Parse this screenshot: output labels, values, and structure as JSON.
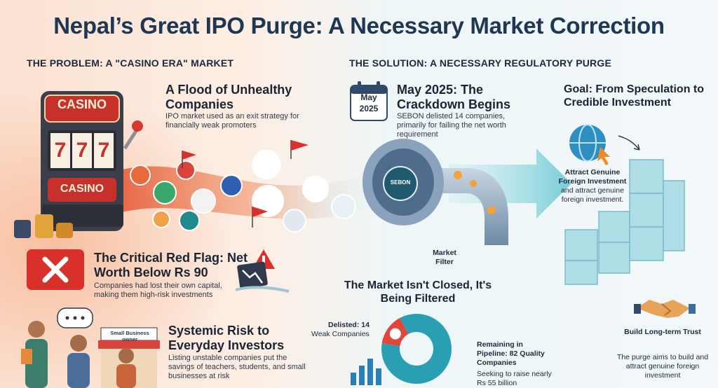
{
  "title": "Nepal’s Great IPO Purge: A Necessary Market Correction",
  "problem": {
    "heading": "THE PROBLEM: A \"CASINO ERA\" MARKET",
    "casino_sign": "CASINO",
    "slot_reels": [
      "7",
      "7",
      "7"
    ],
    "slot_bottom_sign": "CASINO",
    "flood_title": "A Flood of Unhealthy Companies",
    "flood_text": "IPO market used as an exit strategy for financially weak promoters",
    "red_flag_title": "The Critical Red Flag: Net Worth Below Rs 90",
    "red_flag_text": "Companies had lost their own capital, making them high-risk investments",
    "risk_title": "Systemic Risk to Everyday Investors",
    "risk_text": "Listing unstable companies put the savings of teachers, students, and small businesses at risk",
    "shop_sign": "Small Business owner"
  },
  "solution": {
    "heading": "THE SOLUTION: A NECESSARY REGULATORY PURGE",
    "calendar_month": "May",
    "calendar_year": "2025",
    "crackdown_title": "May 2025: The Crackdown Begins",
    "crackdown_text": "SEBON delisted 14 companies, primarily for failing the net worth requirement",
    "filter_badge": "SEBON",
    "filter_label": "Market Filter",
    "filtered_title": "The Market Isn't Closed, It's Being Filtered",
    "delisted_label": "Delisted: 14",
    "delisted_sub": "Weak Companies",
    "remaining_label": "Remaining in Pipeline: 82 Quality Companies",
    "remaining_sub": "Seeking to raise nearly Rs 55 billion",
    "goal_title": "Goal: From Speculation to Credible Investment",
    "foreign_title": "Attract Genuine Foreign Investment",
    "foreign_text": "and attract genuine foreign investment.",
    "trust_title": "Build Long-term Trust",
    "trust_text": "The purge aims to build and attract genuine foreign investment"
  },
  "donut": {
    "delisted": 14,
    "remaining": 82
  },
  "colors": {
    "title": "#1f3752",
    "casino_red": "#c8302c",
    "teal": "#2a9fb4",
    "arrow": "#6fcad4",
    "cube": "#a9dce6"
  }
}
